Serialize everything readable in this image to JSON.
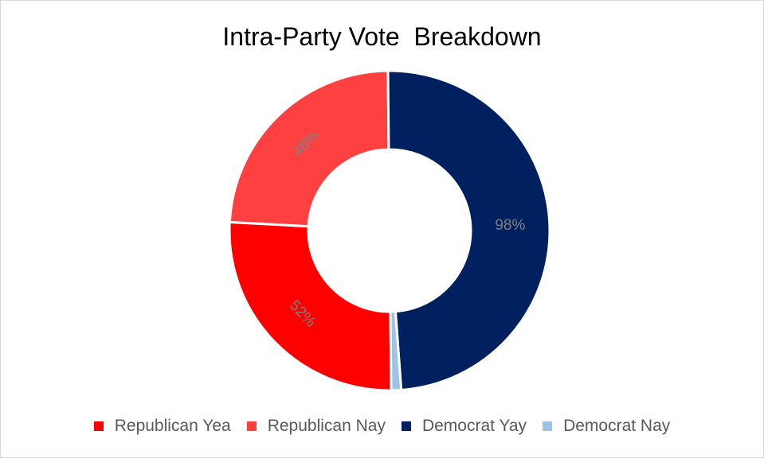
{
  "chart_data": {
    "type": "pie",
    "title": "Intra-Party Vote  Breakdown",
    "donut": true,
    "legend_position": "bottom",
    "series": [
      {
        "name": "Republican Yea",
        "value": 52,
        "label": "52%",
        "color": "#ff0000"
      },
      {
        "name": "Republican Nay",
        "value": 48,
        "label": "48%",
        "color": "#ff4040"
      },
      {
        "name": "Democrat Yay",
        "value": 98,
        "label": "98%",
        "color": "#002060"
      },
      {
        "name": "Democrat Nay",
        "value": 2,
        "label": "",
        "color": "#9dc3e6"
      }
    ]
  }
}
